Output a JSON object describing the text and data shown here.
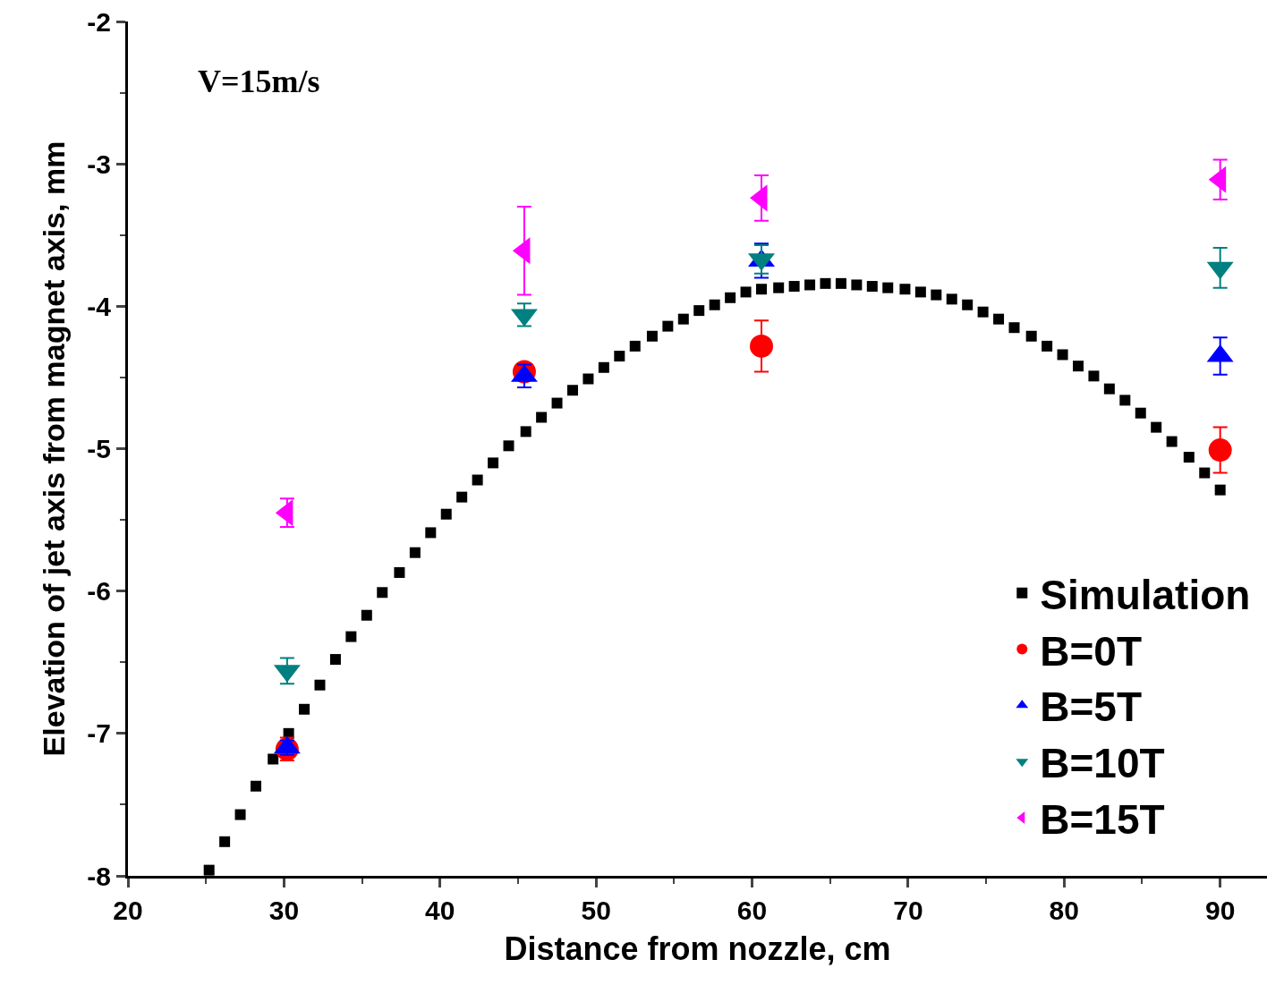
{
  "chart_data": {
    "type": "scatter",
    "xlabel": "Distance from nozzle, cm",
    "ylabel": "Elevation of jet axis from magnet axis, mm",
    "annotations": [
      "V=15m/s"
    ],
    "xlim": [
      20,
      93
    ],
    "xticks": [
      20,
      30,
      40,
      50,
      60,
      70,
      80,
      90
    ],
    "ylim": [
      -8,
      -2
    ],
    "yticks": [
      -8,
      -7,
      -6,
      -5,
      -4,
      -3,
      -2
    ],
    "legend": "bottom right",
    "series": [
      {
        "name": "Simulation",
        "color": "#000000",
        "marker": "square",
        "x": [
          25.2,
          26.2,
          27.2,
          28.2,
          29.3,
          30.3,
          31.3,
          32.3,
          33.3,
          34.3,
          35.3,
          36.3,
          37.4,
          38.4,
          39.4,
          40.4,
          41.4,
          42.4,
          43.4,
          44.4,
          45.5,
          46.5,
          47.5,
          48.5,
          49.5,
          50.5,
          51.5,
          52.5,
          53.6,
          54.6,
          55.6,
          56.6,
          57.6,
          58.6,
          59.6,
          60.6,
          61.7,
          62.7,
          63.7,
          64.7,
          65.7,
          66.7,
          67.7,
          68.7,
          69.8,
          70.8,
          71.8,
          72.8,
          73.8,
          74.8,
          75.8,
          76.8,
          77.9,
          78.9,
          79.9,
          80.9,
          81.9,
          82.9,
          83.9,
          84.9,
          85.9,
          86.9,
          88.0,
          89.0,
          90.0
        ],
        "values": [
          -7.96,
          -7.76,
          -7.57,
          -7.37,
          -7.18,
          -7.0,
          -6.83,
          -6.66,
          -6.48,
          -6.32,
          -6.17,
          -6.01,
          -5.87,
          -5.73,
          -5.59,
          -5.46,
          -5.34,
          -5.22,
          -5.1,
          -4.98,
          -4.88,
          -4.78,
          -4.68,
          -4.59,
          -4.51,
          -4.43,
          -4.35,
          -4.28,
          -4.21,
          -4.14,
          -4.09,
          -4.03,
          -3.99,
          -3.94,
          -3.9,
          -3.88,
          -3.87,
          -3.86,
          -3.85,
          -3.84,
          -3.84,
          -3.85,
          -3.86,
          -3.87,
          -3.88,
          -3.9,
          -3.92,
          -3.95,
          -3.99,
          -4.04,
          -4.09,
          -4.15,
          -4.21,
          -4.28,
          -4.34,
          -4.42,
          -4.49,
          -4.58,
          -4.66,
          -4.75,
          -4.85,
          -4.95,
          -5.06,
          -5.17,
          -5.29
        ]
      },
      {
        "name": "B=0T",
        "color": "#ff0000",
        "marker": "circle",
        "x": [
          30.2,
          45.4,
          60.6,
          90
        ],
        "values": [
          -7.11,
          -4.46,
          -4.28,
          -5.01
        ],
        "errors": [
          0.08,
          0.06,
          0.18,
          0.16
        ]
      },
      {
        "name": "B=5T",
        "color": "#0000ff",
        "marker": "triangle",
        "x": [
          30.2,
          45.4,
          60.6,
          90
        ],
        "values": [
          -7.1,
          -4.49,
          -3.68,
          -4.35
        ],
        "errors": [
          0.05,
          0.08,
          0.12,
          0.13
        ]
      },
      {
        "name": "B=10T",
        "color": "#008080",
        "marker": "triangle",
        "x": [
          30.2,
          45.4,
          60.6,
          90
        ],
        "values": [
          -6.56,
          -4.06,
          -3.67,
          -3.73
        ],
        "errors": [
          0.09,
          0.08,
          0.1,
          0.14
        ]
      },
      {
        "name": "B=15T",
        "color": "#ff00ff",
        "marker": "triangle",
        "x": [
          30.2,
          45.4,
          60.6,
          90
        ],
        "values": [
          -5.45,
          -3.61,
          -3.24,
          -3.11
        ],
        "errors": [
          0.1,
          0.31,
          0.16,
          0.14
        ]
      }
    ]
  }
}
